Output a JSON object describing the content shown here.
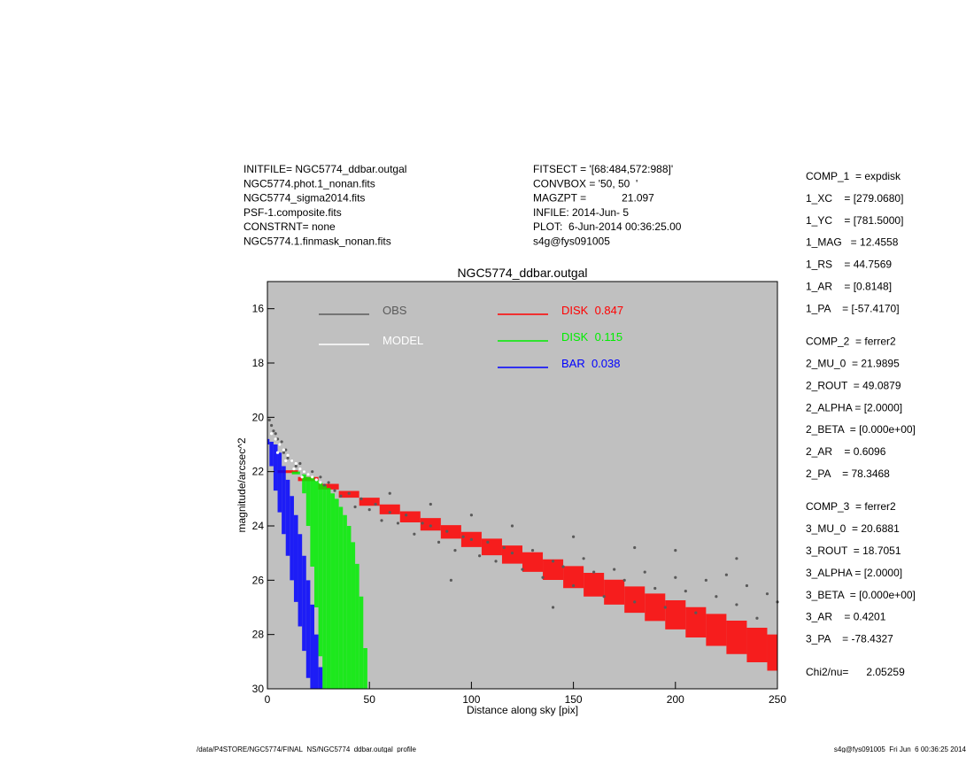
{
  "header": {
    "left": [
      "INITFILE= NGC5774_ddbar.outgal",
      "NGC5774.phot.1_nonan.fits",
      "NGC5774_sigma2014.fits",
      "PSF-1.composite.fits",
      "CONSTRNT= none",
      "NGC5774.1.finmask_nonan.fits"
    ],
    "middle": [
      "FITSECT = '[68:484,572:988]'",
      "CONVBOX = '50, 50  '",
      "MAGZPT =            21.097",
      "INFILE: 2014-Jun- 5",
      "PLOT:  6-Jun-2014 00:36:25.00",
      "s4g@fys091005"
    ]
  },
  "params": [
    [
      "COMP_1  = expdisk",
      "1_XC    = [279.0680]",
      "1_YC    = [781.5000]",
      "1_MAG   = 12.4558",
      "1_RS    = 44.7569",
      "1_AR    = [0.8148]",
      "1_PA    = [-57.4170]"
    ],
    [
      "COMP_2  = ferrer2",
      "2_MU_0  = 21.9895",
      "2_ROUT  = 49.0879",
      "2_ALPHA = [2.0000]",
      "2_BETA  = [0.000e+00]",
      "2_AR    = 0.6096",
      "2_PA    = 78.3468"
    ],
    [
      "COMP_3  = ferrer2",
      "3_MU_0  = 20.6881",
      "3_ROUT  = 18.7051",
      "3_ALPHA = [2.0000]",
      "3_BETA  = [0.000e+00]",
      "3_AR    = 0.4201",
      "3_PA    = -78.4327"
    ],
    [
      "Chi2/nu=      2.05259"
    ]
  ],
  "footer": {
    "left": "/data/P4STORE/NGC5774/FINAL_NS/NGC5774_ddbar.outgal_profile",
    "right": "s4g@fys091005  Fri Jun  6 00:36:25 2014"
  },
  "chart_data": {
    "type": "scatter",
    "title": "NGC5774_ddbar.outgal",
    "x_label": "Distance along sky [pix]",
    "y_label": "magnitude/arcsec^2",
    "xlim": [
      0,
      250
    ],
    "ylim": [
      15,
      30
    ],
    "xticks": [
      0,
      50,
      100,
      150,
      200,
      250
    ],
    "yticks": [
      16,
      18,
      20,
      22,
      24,
      26,
      28,
      30
    ],
    "background": "#c0c0c0",
    "series": [
      {
        "name": "OBS",
        "color": "#5a5a5a",
        "x": [
          1,
          2,
          3,
          4,
          5,
          6,
          7,
          8,
          9,
          10,
          12,
          14,
          16,
          18,
          20,
          22,
          24,
          26,
          28,
          30,
          33,
          36,
          40,
          43,
          46,
          50,
          53,
          56,
          60,
          64,
          68,
          72,
          76,
          80,
          84,
          88,
          92,
          96,
          100,
          104,
          108,
          112,
          116,
          120,
          125,
          130,
          135,
          140,
          145,
          150,
          155,
          160,
          165,
          170,
          175,
          180,
          185,
          190,
          195,
          200,
          205,
          210,
          215,
          220,
          225,
          230,
          235,
          240,
          245,
          250,
          60,
          80,
          100,
          120,
          150,
          180,
          200,
          230,
          90,
          140
        ],
        "values": [
          20.1,
          20.3,
          20.5,
          20.6,
          20.8,
          21.0,
          20.9,
          21.3,
          21.2,
          21.5,
          21.6,
          21.8,
          21.7,
          22.0,
          22.1,
          22.0,
          22.3,
          22.2,
          22.5,
          22.4,
          22.7,
          22.9,
          22.8,
          23.3,
          23.0,
          23.4,
          23.2,
          23.8,
          23.5,
          23.9,
          23.6,
          24.3,
          23.9,
          24.0,
          24.6,
          24.2,
          24.9,
          24.4,
          24.5,
          25.1,
          24.6,
          25.3,
          24.8,
          25.0,
          25.6,
          24.9,
          25.9,
          25.3,
          25.5,
          26.2,
          25.2,
          25.7,
          26.6,
          25.6,
          26.0,
          26.8,
          25.7,
          26.3,
          27.0,
          25.9,
          26.4,
          27.2,
          26.0,
          26.6,
          25.8,
          26.9,
          26.2,
          27.4,
          26.5,
          26.8,
          22.8,
          23.2,
          23.6,
          24.0,
          24.4,
          24.8,
          24.9,
          25.2,
          26.0,
          27.0
        ]
      },
      {
        "name": "MODEL",
        "color": "#ffffff",
        "x": [
          2,
          4,
          6,
          8,
          10,
          12,
          14,
          16,
          18,
          20,
          22,
          24,
          26,
          5,
          9,
          13,
          17
        ],
        "values": [
          20.6,
          20.8,
          21.0,
          21.2,
          21.4,
          21.6,
          21.7,
          21.9,
          22.0,
          22.1,
          22.2,
          22.3,
          22.4,
          21.3,
          21.6,
          21.9,
          22.2
        ]
      },
      {
        "name": "DISK  0.847",
        "color": "#ff0000",
        "x": [
          10,
          20,
          30,
          40,
          50,
          60,
          70,
          80,
          90,
          100,
          110,
          120,
          130,
          140,
          150,
          160,
          170,
          180,
          190,
          200,
          210,
          220,
          230,
          240,
          250
        ],
        "values": [
          21.95,
          22.2,
          22.45,
          22.71,
          22.96,
          23.21,
          23.46,
          23.71,
          23.97,
          24.22,
          24.47,
          24.72,
          24.97,
          25.23,
          25.48,
          25.73,
          25.98,
          26.23,
          26.49,
          26.74,
          26.99,
          27.24,
          27.49,
          27.75,
          28.0
        ],
        "values_lower": [
          22.05,
          22.35,
          22.66,
          22.96,
          23.26,
          23.57,
          23.87,
          24.17,
          24.47,
          24.78,
          25.08,
          25.39,
          25.69,
          25.99,
          26.29,
          26.6,
          26.9,
          27.2,
          27.5,
          27.81,
          28.11,
          28.42,
          28.72,
          29.02,
          29.33
        ]
      },
      {
        "name": "DISK  0.115",
        "color": "#00ee00",
        "x": [
          14,
          18,
          20,
          22,
          24,
          26,
          28,
          30,
          32,
          34,
          36,
          38,
          40,
          42,
          44,
          46,
          48
        ],
        "values": [
          22.0,
          22.1,
          22.2,
          22.2,
          22.3,
          22.4,
          22.5,
          22.6,
          22.8,
          23.0,
          23.3,
          23.6,
          24.0,
          24.6,
          25.4,
          26.6,
          28.5
        ],
        "values_lower": [
          22.1,
          22.8,
          24.0,
          25.5,
          27.0,
          28.8,
          30,
          30,
          30,
          30,
          30,
          30,
          30,
          30,
          30,
          30,
          30
        ]
      },
      {
        "name": "BAR  0.038",
        "color": "#0000ff",
        "x": [
          0,
          2,
          4,
          6,
          8,
          10,
          12,
          14,
          16,
          18,
          20,
          22,
          24,
          26
        ],
        "values": [
          20.8,
          20.9,
          21.0,
          21.3,
          21.8,
          22.3,
          22.9,
          23.6,
          24.3,
          25.1,
          26.0,
          26.9,
          28.0,
          29.2
        ],
        "values_lower": [
          21.0,
          21.8,
          22.7,
          23.5,
          24.3,
          25.1,
          26.0,
          26.8,
          27.7,
          28.6,
          29.6,
          30,
          30,
          30
        ]
      }
    ]
  }
}
